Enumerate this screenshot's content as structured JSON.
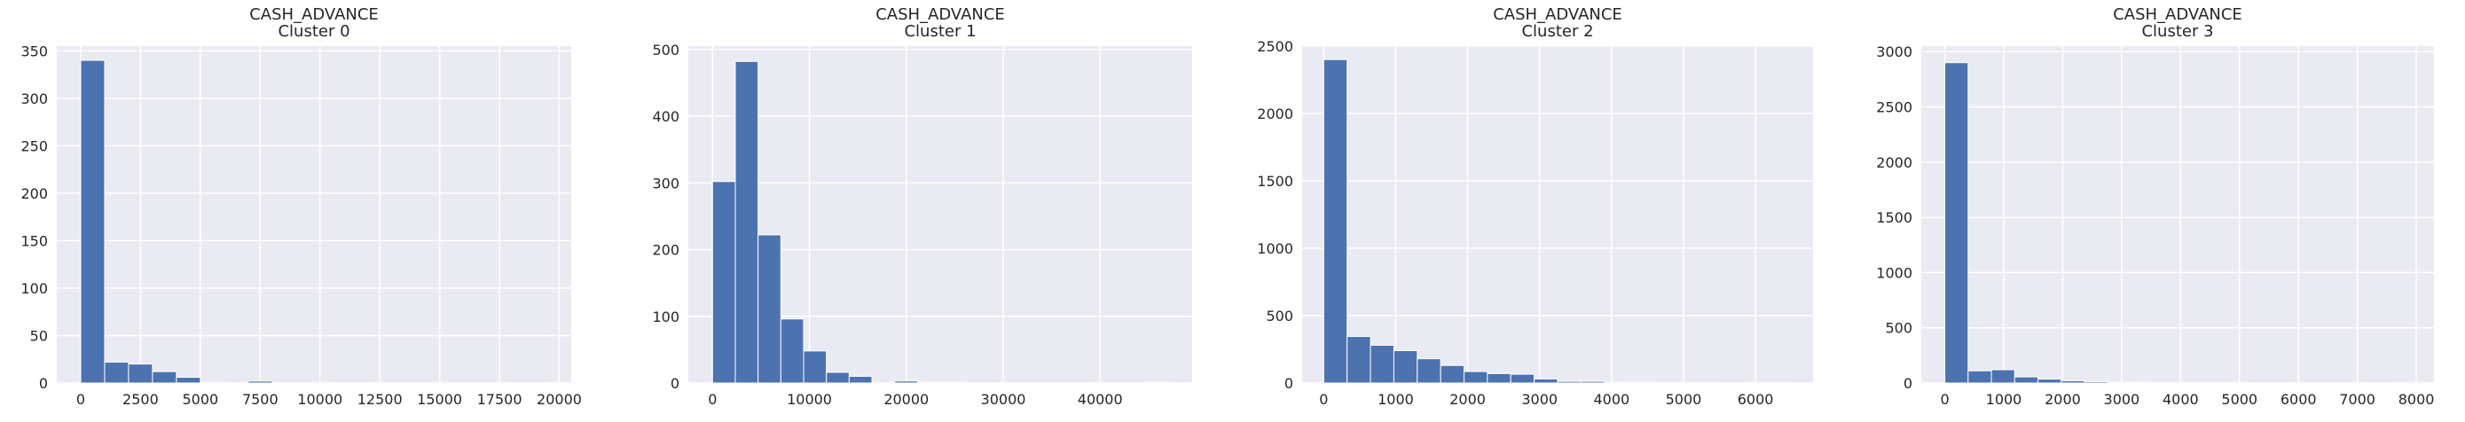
{
  "chart_data": [
    {
      "type": "bar",
      "title": [
        "CASH_ADVANCE",
        "Cluster 0"
      ],
      "xlim": [
        -1000,
        20500
      ],
      "ylim": [
        0,
        355
      ],
      "xticks": [
        0,
        2500,
        5000,
        7500,
        10000,
        12500,
        15000,
        17500,
        20000
      ],
      "yticks": [
        0,
        50,
        100,
        150,
        200,
        250,
        300,
        350
      ],
      "bin_edges": [
        0,
        1000,
        2000,
        3000,
        4000,
        5000,
        6000,
        7000,
        8000,
        9000,
        10000,
        11000,
        12000,
        13000,
        14000,
        15000,
        16000,
        17000,
        18000,
        19000,
        20000
      ],
      "values": [
        340,
        22,
        20,
        12,
        6,
        1,
        0,
        2,
        0,
        0,
        0,
        0,
        0,
        0,
        0,
        0,
        0,
        0,
        0,
        0
      ],
      "color": "#4c72b0",
      "grid": true
    },
    {
      "type": "bar",
      "title": [
        "CASH_ADVANCE",
        "Cluster 1"
      ],
      "xlim": [
        -2500,
        49500
      ],
      "ylim": [
        0,
        505
      ],
      "xticks": [
        0,
        10000,
        20000,
        30000,
        40000
      ],
      "yticks": [
        0,
        100,
        200,
        300,
        400,
        500
      ],
      "bin_edges": [
        0,
        2350,
        4700,
        7050,
        9400,
        11750,
        14100,
        16450,
        18800,
        21150,
        23500,
        25850,
        28200,
        30550,
        32900,
        35250,
        37600,
        39950,
        42300,
        44650,
        47000
      ],
      "values": [
        302,
        482,
        222,
        96,
        48,
        16,
        10,
        0,
        3,
        1,
        1,
        0,
        0,
        0,
        0,
        0,
        0,
        0,
        0,
        1
      ],
      "color": "#4c72b0",
      "grid": true
    },
    {
      "type": "bar",
      "title": [
        "CASH_ADVANCE",
        "Cluster 2"
      ],
      "xlim": [
        -300,
        6800
      ],
      "ylim": [
        0,
        2500
      ],
      "xticks": [
        0,
        1000,
        2000,
        3000,
        4000,
        5000,
        6000
      ],
      "yticks": [
        0,
        500,
        1000,
        1500,
        2000,
        2500
      ],
      "bin_edges": [
        0,
        325,
        650,
        975,
        1300,
        1625,
        1950,
        2275,
        2600,
        2925,
        3250,
        3575,
        3900,
        4225,
        4550,
        4875,
        5200,
        5525,
        5850,
        6175,
        6500
      ],
      "values": [
        2400,
        345,
        280,
        240,
        180,
        130,
        85,
        70,
        65,
        30,
        12,
        12,
        4,
        3,
        2,
        1,
        1,
        0,
        1,
        1
      ],
      "color": "#4c72b0",
      "grid": true
    },
    {
      "type": "bar",
      "title": [
        "CASH_ADVANCE",
        "Cluster 3"
      ],
      "xlim": [
        -400,
        8300
      ],
      "ylim": [
        0,
        3050
      ],
      "xticks": [
        0,
        1000,
        2000,
        3000,
        4000,
        5000,
        6000,
        7000,
        8000
      ],
      "yticks": [
        0,
        500,
        1000,
        1500,
        2000,
        2500,
        3000
      ],
      "bin_edges": [
        0,
        395,
        790,
        1185,
        1580,
        1975,
        2370,
        2765,
        3160,
        3555,
        3950,
        4345,
        4740,
        5135,
        5530,
        5925,
        6320,
        6715,
        7110,
        7505,
        7900
      ],
      "values": [
        2900,
        110,
        120,
        55,
        35,
        20,
        12,
        6,
        3,
        2,
        1,
        1,
        1,
        0,
        0,
        0,
        0,
        0,
        0,
        1
      ],
      "color": "#4c72b0",
      "grid": true
    }
  ]
}
